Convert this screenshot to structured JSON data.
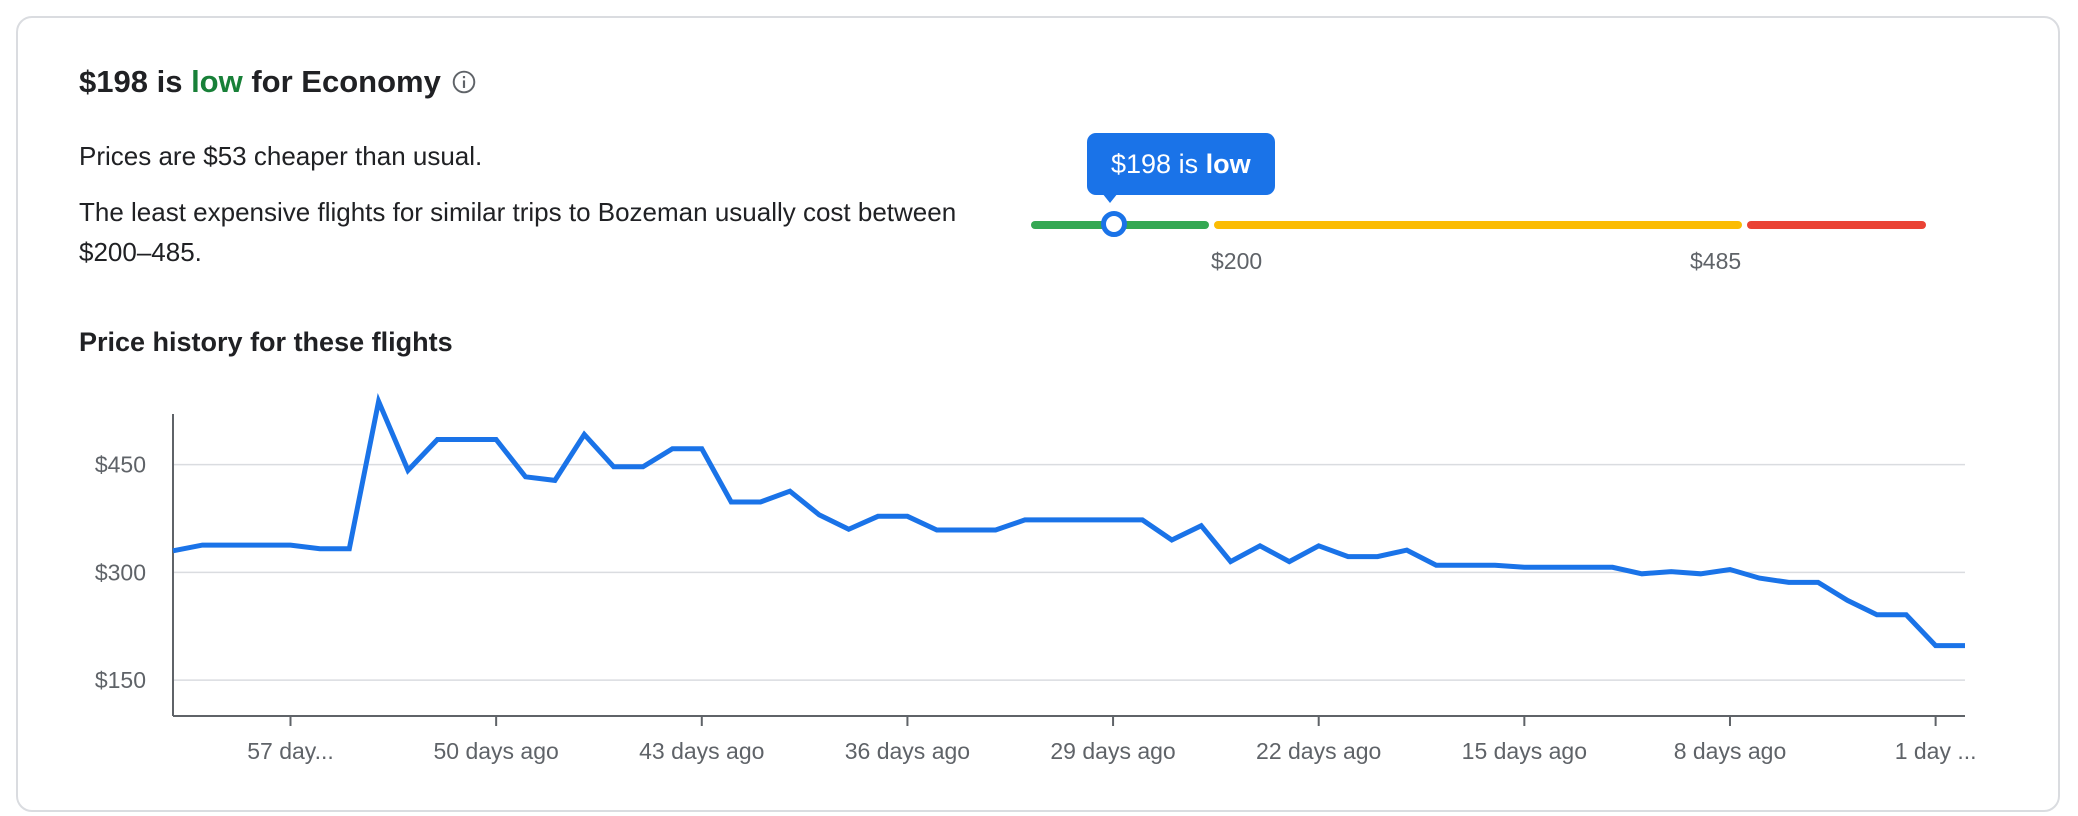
{
  "insight": {
    "price": "$198",
    "is_word": " is ",
    "level": "low",
    "suffix": " for Economy",
    "summary": "Prices are $53 cheaper than usual.",
    "typical": "The least expensive flights for similar trips to Bozeman usually cost between $200–485."
  },
  "meter": {
    "tooltip_price": "$198",
    "tooltip_is": " is ",
    "tooltip_level": "low",
    "label_low": "$200",
    "label_high": "$485",
    "current_value": 198,
    "low_threshold": 200,
    "high_threshold": 485,
    "colors": {
      "low": "#34a853",
      "typical": "#fbbc04",
      "high": "#ea4335",
      "accent": "#1a73e8"
    }
  },
  "history": {
    "title": "Price history for these flights"
  },
  "chart_data": {
    "type": "line",
    "x_labels": [
      "57 day...",
      "50 days ago",
      "43 days ago",
      "36 days ago",
      "29 days ago",
      "22 days ago",
      "15 days ago",
      "8 days ago",
      "1 day ..."
    ],
    "x_label_days_ago": [
      57,
      50,
      43,
      36,
      29,
      22,
      15,
      8,
      1
    ],
    "x_range": [
      61,
      0
    ],
    "y_ticks": [
      150,
      300,
      450
    ],
    "y_tick_labels": [
      "$150",
      "$300",
      "$450"
    ],
    "ylim": [
      100,
      540
    ],
    "grid": true,
    "series": [
      {
        "color": "#1a73e8",
        "points": [
          [
            61,
            330
          ],
          [
            60,
            338
          ],
          [
            59,
            338
          ],
          [
            58,
            338
          ],
          [
            57,
            338
          ],
          [
            56,
            333
          ],
          [
            55,
            333
          ],
          [
            54,
            538
          ],
          [
            53,
            442
          ],
          [
            52,
            485
          ],
          [
            51,
            485
          ],
          [
            50,
            485
          ],
          [
            49,
            433
          ],
          [
            48,
            428
          ],
          [
            47,
            492
          ],
          [
            46,
            447
          ],
          [
            45,
            447
          ],
          [
            44,
            472
          ],
          [
            43,
            472
          ],
          [
            42,
            398
          ],
          [
            41,
            398
          ],
          [
            40,
            413
          ],
          [
            39,
            380
          ],
          [
            38,
            360
          ],
          [
            37,
            378
          ],
          [
            36,
            378
          ],
          [
            35,
            359
          ],
          [
            34,
            359
          ],
          [
            33,
            359
          ],
          [
            32,
            373
          ],
          [
            31,
            373
          ],
          [
            30,
            373
          ],
          [
            29,
            373
          ],
          [
            28,
            373
          ],
          [
            27,
            345
          ],
          [
            26,
            365
          ],
          [
            25,
            315
          ],
          [
            24,
            337
          ],
          [
            23,
            315
          ],
          [
            22,
            337
          ],
          [
            21,
            322
          ],
          [
            20,
            322
          ],
          [
            19,
            331
          ],
          [
            18,
            310
          ],
          [
            17,
            310
          ],
          [
            16,
            310
          ],
          [
            15,
            307
          ],
          [
            14,
            307
          ],
          [
            13,
            307
          ],
          [
            12,
            307
          ],
          [
            11,
            298
          ],
          [
            10,
            301
          ],
          [
            9,
            298
          ],
          [
            8,
            304
          ],
          [
            7,
            292
          ],
          [
            6,
            286
          ],
          [
            5,
            286
          ],
          [
            4,
            261
          ],
          [
            3,
            241
          ],
          [
            2,
            241
          ],
          [
            1,
            198
          ],
          [
            0,
            198
          ]
        ]
      }
    ]
  }
}
